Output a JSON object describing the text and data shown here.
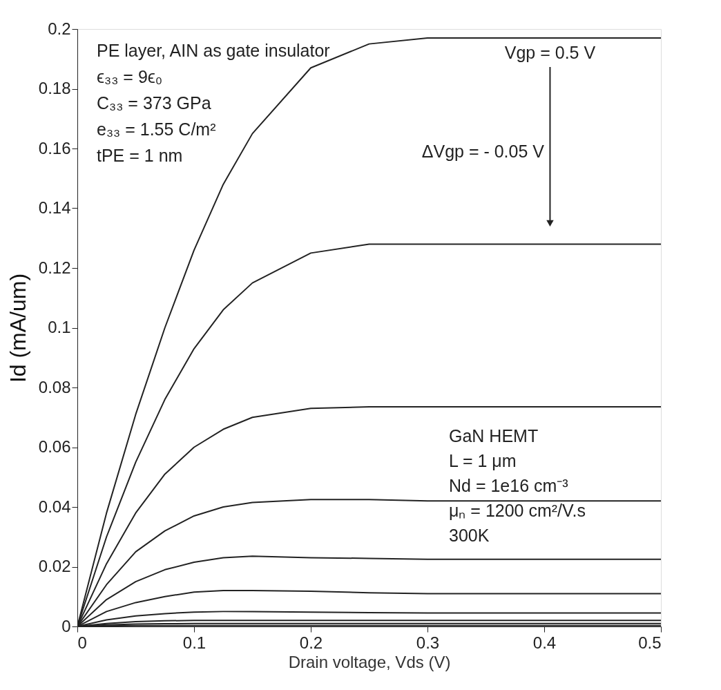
{
  "chart_data": {
    "type": "line",
    "xlabel": "Drain voltage, Vds (V)",
    "ylabel": "Id (mA/um)",
    "x": [
      0,
      0.025,
      0.05,
      0.075,
      0.1,
      0.125,
      0.15,
      0.2,
      0.25,
      0.3,
      0.35,
      0.4,
      0.45,
      0.5
    ],
    "series": [
      {
        "color": "#222222",
        "values": [
          0,
          0.038,
          0.071,
          0.1,
          0.126,
          0.148,
          0.165,
          0.187,
          0.195,
          0.197,
          0.197,
          0.197,
          0.197,
          0.197
        ]
      },
      {
        "color": "#222222",
        "values": [
          0,
          0.03,
          0.055,
          0.076,
          0.093,
          0.106,
          0.115,
          0.125,
          0.128,
          0.128,
          0.128,
          0.128,
          0.128,
          0.128
        ]
      },
      {
        "color": "#222222",
        "values": [
          0,
          0.021,
          0.038,
          0.051,
          0.06,
          0.066,
          0.07,
          0.073,
          0.0735,
          0.0735,
          0.0735,
          0.0735,
          0.0735,
          0.0735
        ]
      },
      {
        "color": "#222222",
        "values": [
          0,
          0.014,
          0.025,
          0.032,
          0.037,
          0.04,
          0.0415,
          0.0425,
          0.0425,
          0.042,
          0.042,
          0.042,
          0.042,
          0.042
        ]
      },
      {
        "color": "#222222",
        "values": [
          0,
          0.009,
          0.015,
          0.019,
          0.0215,
          0.023,
          0.0235,
          0.023,
          0.0228,
          0.0225,
          0.0225,
          0.0225,
          0.0225,
          0.0225
        ]
      },
      {
        "color": "#222222",
        "values": [
          0,
          0.005,
          0.008,
          0.01,
          0.0115,
          0.012,
          0.012,
          0.0118,
          0.0113,
          0.011,
          0.011,
          0.011,
          0.011,
          0.011
        ]
      },
      {
        "color": "#222222",
        "values": [
          0,
          0.0022,
          0.0035,
          0.0043,
          0.0048,
          0.005,
          0.005,
          0.0048,
          0.0046,
          0.0045,
          0.0045,
          0.0045,
          0.0045,
          0.0045
        ]
      },
      {
        "color": "#222222",
        "values": [
          0,
          0.001,
          0.0016,
          0.0019,
          0.002,
          0.002,
          0.002,
          0.002,
          0.002,
          0.002,
          0.002,
          0.002,
          0.002,
          0.002
        ]
      },
      {
        "color": "#222222",
        "values": [
          0,
          0.0005,
          0.0008,
          0.0009,
          0.001,
          0.001,
          0.001,
          0.001,
          0.001,
          0.001,
          0.001,
          0.001,
          0.001,
          0.001
        ]
      },
      {
        "color": "#222222",
        "values": [
          0,
          0.0002,
          0.0003,
          0.0003,
          0.0003,
          0.0003,
          0.0003,
          0.0003,
          0.0003,
          0.0003,
          0.0003,
          0.0003,
          0.0003,
          0.0003
        ]
      }
    ],
    "xlim": [
      0,
      0.5
    ],
    "xticks": [
      0,
      0.1,
      0.2,
      0.3,
      0.4,
      0.5
    ],
    "ylim": [
      0,
      0.2
    ],
    "yticks": [
      0,
      0.02,
      0.04,
      0.06,
      0.08,
      0.1,
      0.12,
      0.14,
      0.16,
      0.18,
      0.2
    ],
    "grid": false,
    "legend": false,
    "marker": "none",
    "line_style": "solid",
    "annotations": [
      "PE layer, AIN as gate insulator",
      "ϵ₃₃ = 9ϵ₀",
      "C₃₃ = 373 GPa",
      "e₃₃ = 1.55 C/m²",
      "tPE = 1 nm",
      {
        "text": "Vgp = 0.5 V",
        "x": 0.405,
        "y": 0.197
      },
      "ΔVgp = - 0.05 V",
      "GaN HEMT",
      "L = 1 μm",
      "Nd = 1e16 cm⁻³",
      "μₙ = 1200 cm²/V.s",
      "300K"
    ]
  }
}
